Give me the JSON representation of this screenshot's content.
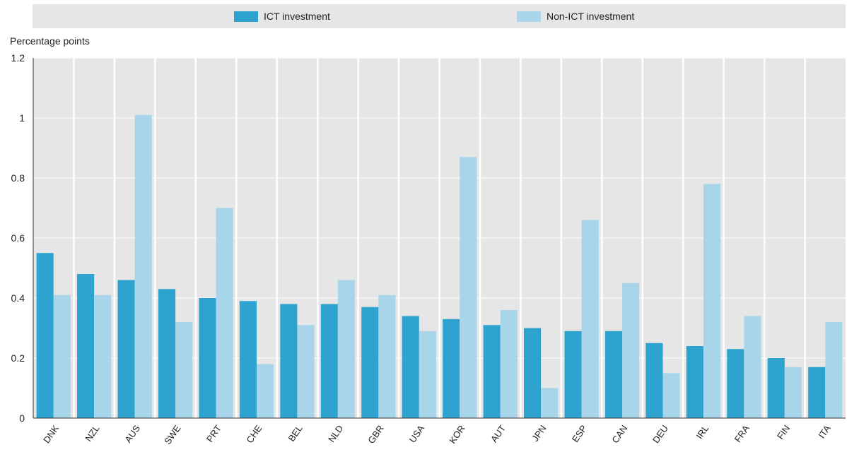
{
  "legend": {
    "ict_label": "ICT investment",
    "nonict_label": "Non-ICT investment"
  },
  "colors": {
    "ict": "#2fa3cf",
    "nonict": "#a8d5ea",
    "panel": "#e6e6e6",
    "grid": "#ffffff"
  },
  "chart_data": {
    "type": "bar",
    "ylabel": "Percentage points",
    "ylim": [
      0,
      1.2
    ],
    "yticks": [
      "0",
      "0.2",
      "0.4",
      "0.6",
      "0.8",
      "1",
      "1.2"
    ],
    "ytick_values": [
      0,
      0.2,
      0.4,
      0.6,
      0.8,
      1.0,
      1.2
    ],
    "grid": true,
    "legend_position": "top",
    "categories": [
      "DNK",
      "NZL",
      "AUS",
      "SWE",
      "PRT",
      "CHE",
      "BEL",
      "NLD",
      "GBR",
      "USA",
      "KOR",
      "AUT",
      "JPN",
      "ESP",
      "CAN",
      "DEU",
      "IRL",
      "FRA",
      "FIN",
      "ITA"
    ],
    "series": [
      {
        "name": "ICT investment",
        "values": [
          0.55,
          0.48,
          0.46,
          0.43,
          0.4,
          0.39,
          0.38,
          0.38,
          0.37,
          0.34,
          0.33,
          0.31,
          0.3,
          0.29,
          0.29,
          0.25,
          0.24,
          0.23,
          0.2,
          0.17
        ]
      },
      {
        "name": "Non-ICT investment",
        "values": [
          0.41,
          0.41,
          1.01,
          0.32,
          0.7,
          0.18,
          0.31,
          0.46,
          0.41,
          0.29,
          0.87,
          0.36,
          0.1,
          0.66,
          0.45,
          0.15,
          0.78,
          0.34,
          0.17,
          0.32
        ]
      }
    ]
  }
}
